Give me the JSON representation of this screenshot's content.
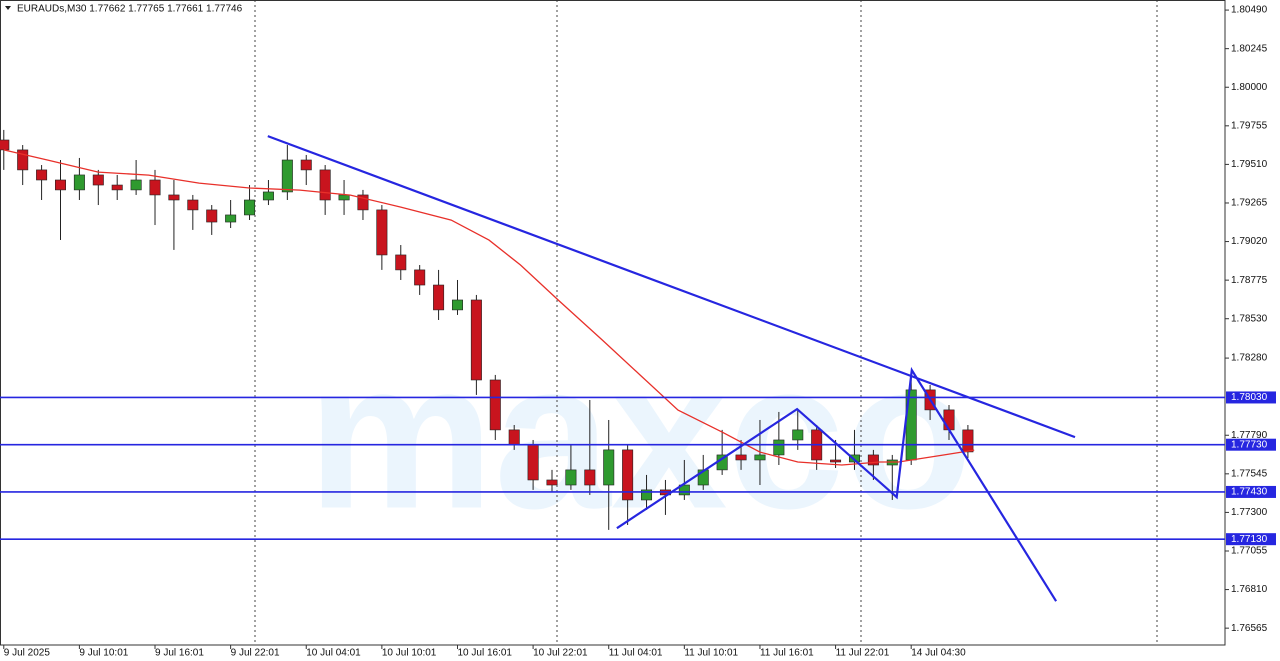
{
  "chart_data": {
    "type": "candlestick",
    "header": "EURAUDs,M30 1.77662 1.77765 1.77661 1.77746",
    "watermark": "maxco",
    "xlim": [
      -0.6,
      193.8
    ],
    "ylim": [
      1.76458,
      1.80554
    ],
    "xticks": [
      {
        "value": 0,
        "label": "9 Jul 2025"
      },
      {
        "value": 12,
        "label": "9 Jul 10:01"
      },
      {
        "value": 24,
        "label": "9 Jul 16:01"
      },
      {
        "value": 36,
        "label": "9 Jul 22:01"
      },
      {
        "value": 48,
        "label": "10 Jul 04:01"
      },
      {
        "value": 60,
        "label": "10 Jul 10:01"
      },
      {
        "value": 72,
        "label": "10 Jul 16:01"
      },
      {
        "value": 84,
        "label": "10 Jul 22:01"
      },
      {
        "value": 96,
        "label": "11 Jul 04:01"
      },
      {
        "value": 108,
        "label": "11 Jul 10:01"
      },
      {
        "value": 120,
        "label": "11 Jul 16:01"
      },
      {
        "value": 132,
        "label": "11 Jul 22:01"
      },
      {
        "value": 144,
        "label": "14 Jul 04:30"
      }
    ],
    "yticks": [
      {
        "value": 1.8049,
        "label": "1.80490"
      },
      1.80245,
      {
        "value": 1.8,
        "label": "1.80000"
      },
      1.79755,
      {
        "value": 1.7951,
        "label": "1.79510"
      },
      1.79265,
      {
        "value": 1.7902,
        "label": "1.79020"
      },
      1.78775,
      {
        "value": 1.7853,
        "label": "1.78530"
      },
      {
        "value": 1.7828,
        "label": "1.78280"
      },
      {
        "value": 1.7779,
        "label": "1.77790"
      },
      1.77545,
      {
        "value": 1.773,
        "label": "1.77300"
      },
      1.77055,
      {
        "value": 1.7681,
        "label": "1.76810"
      },
      1.76565
    ],
    "up_color": "#2f9a2f",
    "down_color": "#c8141e",
    "candles": [
      {
        "x": 0,
        "open": 1.79665,
        "high": 1.79729,
        "low": 1.79475,
        "close": 1.79602
      },
      {
        "x": 3,
        "open": 1.79602,
        "high": 1.79633,
        "low": 1.79379,
        "close": 1.79475
      },
      {
        "x": 6,
        "open": 1.79475,
        "high": 1.79506,
        "low": 1.79284,
        "close": 1.79411
      },
      {
        "x": 9,
        "open": 1.79411,
        "high": 1.79538,
        "low": 1.7903,
        "close": 1.79348
      },
      {
        "x": 12,
        "open": 1.79348,
        "high": 1.79551,
        "low": 1.79284,
        "close": 1.79443
      },
      {
        "x": 15,
        "open": 1.79443,
        "high": 1.79475,
        "low": 1.79252,
        "close": 1.79379
      },
      {
        "x": 18,
        "open": 1.79379,
        "high": 1.79443,
        "low": 1.79284,
        "close": 1.79348
      },
      {
        "x": 21,
        "open": 1.79348,
        "high": 1.79538,
        "low": 1.79316,
        "close": 1.79411
      },
      {
        "x": 24,
        "open": 1.79411,
        "high": 1.79475,
        "low": 1.79125,
        "close": 1.79316
      },
      {
        "x": 27,
        "open": 1.79316,
        "high": 1.79411,
        "low": 1.78967,
        "close": 1.79284
      },
      {
        "x": 30,
        "open": 1.79284,
        "high": 1.79316,
        "low": 1.79094,
        "close": 1.79221
      },
      {
        "x": 33,
        "open": 1.79221,
        "high": 1.79252,
        "low": 1.79062,
        "close": 1.79144
      },
      {
        "x": 36,
        "open": 1.79144,
        "high": 1.79284,
        "low": 1.79106,
        "close": 1.79189
      },
      {
        "x": 39,
        "open": 1.79189,
        "high": 1.79379,
        "low": 1.79157,
        "close": 1.79284
      },
      {
        "x": 42,
        "open": 1.79284,
        "high": 1.79411,
        "low": 1.79252,
        "close": 1.79335
      },
      {
        "x": 45,
        "open": 1.79335,
        "high": 1.79633,
        "low": 1.79284,
        "close": 1.79538
      },
      {
        "x": 48,
        "open": 1.79538,
        "high": 1.7957,
        "low": 1.79379,
        "close": 1.79475
      },
      {
        "x": 51,
        "open": 1.79475,
        "high": 1.79506,
        "low": 1.79189,
        "close": 1.79284
      },
      {
        "x": 54,
        "open": 1.79284,
        "high": 1.79411,
        "low": 1.79189,
        "close": 1.79316
      },
      {
        "x": 57,
        "open": 1.79316,
        "high": 1.79348,
        "low": 1.79157,
        "close": 1.79221
      },
      {
        "x": 60,
        "open": 1.79221,
        "high": 1.79252,
        "low": 1.7884,
        "close": 1.78935
      },
      {
        "x": 63,
        "open": 1.78935,
        "high": 1.78998,
        "low": 1.78776,
        "close": 1.7884
      },
      {
        "x": 66,
        "open": 1.7884,
        "high": 1.78871,
        "low": 1.78681,
        "close": 1.78744
      },
      {
        "x": 69,
        "open": 1.78744,
        "high": 1.7884,
        "low": 1.78522,
        "close": 1.78586
      },
      {
        "x": 72,
        "open": 1.78586,
        "high": 1.78776,
        "low": 1.78554,
        "close": 1.78649
      },
      {
        "x": 75,
        "open": 1.78649,
        "high": 1.78681,
        "low": 1.78046,
        "close": 1.78141
      },
      {
        "x": 78,
        "open": 1.78141,
        "high": 1.78173,
        "low": 1.7776,
        "close": 1.77824
      },
      {
        "x": 81,
        "open": 1.77824,
        "high": 1.77855,
        "low": 1.77697,
        "close": 1.77728
      },
      {
        "x": 84,
        "open": 1.77728,
        "high": 1.7776,
        "low": 1.77443,
        "close": 1.77506
      },
      {
        "x": 87,
        "open": 1.77506,
        "high": 1.7757,
        "low": 1.7743,
        "close": 1.77474
      },
      {
        "x": 90,
        "open": 1.77474,
        "high": 1.77728,
        "low": 1.77443,
        "close": 1.7757
      },
      {
        "x": 93,
        "open": 1.7757,
        "high": 1.78014,
        "low": 1.77411,
        "close": 1.77474
      },
      {
        "x": 96,
        "open": 1.77474,
        "high": 1.77887,
        "low": 1.77189,
        "close": 1.77697
      },
      {
        "x": 99,
        "open": 1.77697,
        "high": 1.77728,
        "low": 1.7722,
        "close": 1.77379
      },
      {
        "x": 102,
        "open": 1.77379,
        "high": 1.77538,
        "low": 1.77316,
        "close": 1.77443
      },
      {
        "x": 105,
        "open": 1.77443,
        "high": 1.77506,
        "low": 1.77284,
        "close": 1.77411
      },
      {
        "x": 108,
        "open": 1.77411,
        "high": 1.77633,
        "low": 1.77379,
        "close": 1.77474
      },
      {
        "x": 111,
        "open": 1.77474,
        "high": 1.77665,
        "low": 1.77443,
        "close": 1.7757
      },
      {
        "x": 114,
        "open": 1.7757,
        "high": 1.77824,
        "low": 1.77538,
        "close": 1.77665
      },
      {
        "x": 117,
        "open": 1.77665,
        "high": 1.7776,
        "low": 1.7757,
        "close": 1.77633
      },
      {
        "x": 120,
        "open": 1.77633,
        "high": 1.77887,
        "low": 1.77474,
        "close": 1.77665
      },
      {
        "x": 123,
        "open": 1.77665,
        "high": 1.77938,
        "low": 1.77601,
        "close": 1.7776
      },
      {
        "x": 126,
        "open": 1.7776,
        "high": 1.77951,
        "low": 1.77697,
        "close": 1.77824
      },
      {
        "x": 129,
        "open": 1.77824,
        "high": 1.77855,
        "low": 1.7757,
        "close": 1.77633
      },
      {
        "x": 132,
        "open": 1.77633,
        "high": 1.7776,
        "low": 1.77582,
        "close": 1.7762
      },
      {
        "x": 135,
        "open": 1.7762,
        "high": 1.77824,
        "low": 1.7757,
        "close": 1.77665
      },
      {
        "x": 138,
        "open": 1.77665,
        "high": 1.77697,
        "low": 1.77506,
        "close": 1.77601
      },
      {
        "x": 141,
        "open": 1.77601,
        "high": 1.77665,
        "low": 1.77379,
        "close": 1.77633
      },
      {
        "x": 144,
        "open": 1.77633,
        "high": 1.78173,
        "low": 1.77601,
        "close": 1.78078
      },
      {
        "x": 147,
        "open": 1.78078,
        "high": 1.78109,
        "low": 1.77887,
        "close": 1.77951
      },
      {
        "x": 150,
        "open": 1.77951,
        "high": 1.77982,
        "low": 1.7776,
        "close": 1.77824
      },
      {
        "x": 153,
        "open": 1.77824,
        "high": 1.77855,
        "low": 1.77646,
        "close": 1.77684
      }
    ],
    "ma": {
      "color": "#e8302a",
      "x": [
        0,
        7,
        15,
        23,
        31,
        39,
        47,
        55,
        63,
        71,
        77,
        82,
        88,
        95,
        101,
        107,
        114,
        120,
        126,
        133,
        139,
        142,
        149,
        154
      ],
      "y": [
        1.79602,
        1.79537,
        1.79461,
        1.79442,
        1.79391,
        1.7936,
        1.79347,
        1.79315,
        1.79239,
        1.79156,
        1.79029,
        1.78871,
        1.78648,
        1.78394,
        1.78172,
        1.7795,
        1.7781,
        1.77683,
        1.7762,
        1.77601,
        1.7762,
        1.7762,
        1.77664,
        1.77696
      ]
    },
    "trend_color": "#2626e0",
    "trendlines": [
      {
        "x": [
          41.9,
          170.0
        ],
        "y": [
          1.7969,
          1.77778
        ]
      },
      {
        "x": [
          97.3,
          125.9,
          141.7,
          144.1,
          167.0
        ],
        "y": [
          1.772,
          1.77956,
          1.77397,
          1.78204,
          1.76736
        ]
      }
    ],
    "levels": [
      {
        "value": 1.7803,
        "label": "1.78030"
      },
      {
        "value": 1.7773,
        "label": "1.77730"
      },
      {
        "value": 1.7743,
        "label": "1.77430"
      },
      {
        "value": 1.7713,
        "label": "1.77130"
      }
    ]
  }
}
